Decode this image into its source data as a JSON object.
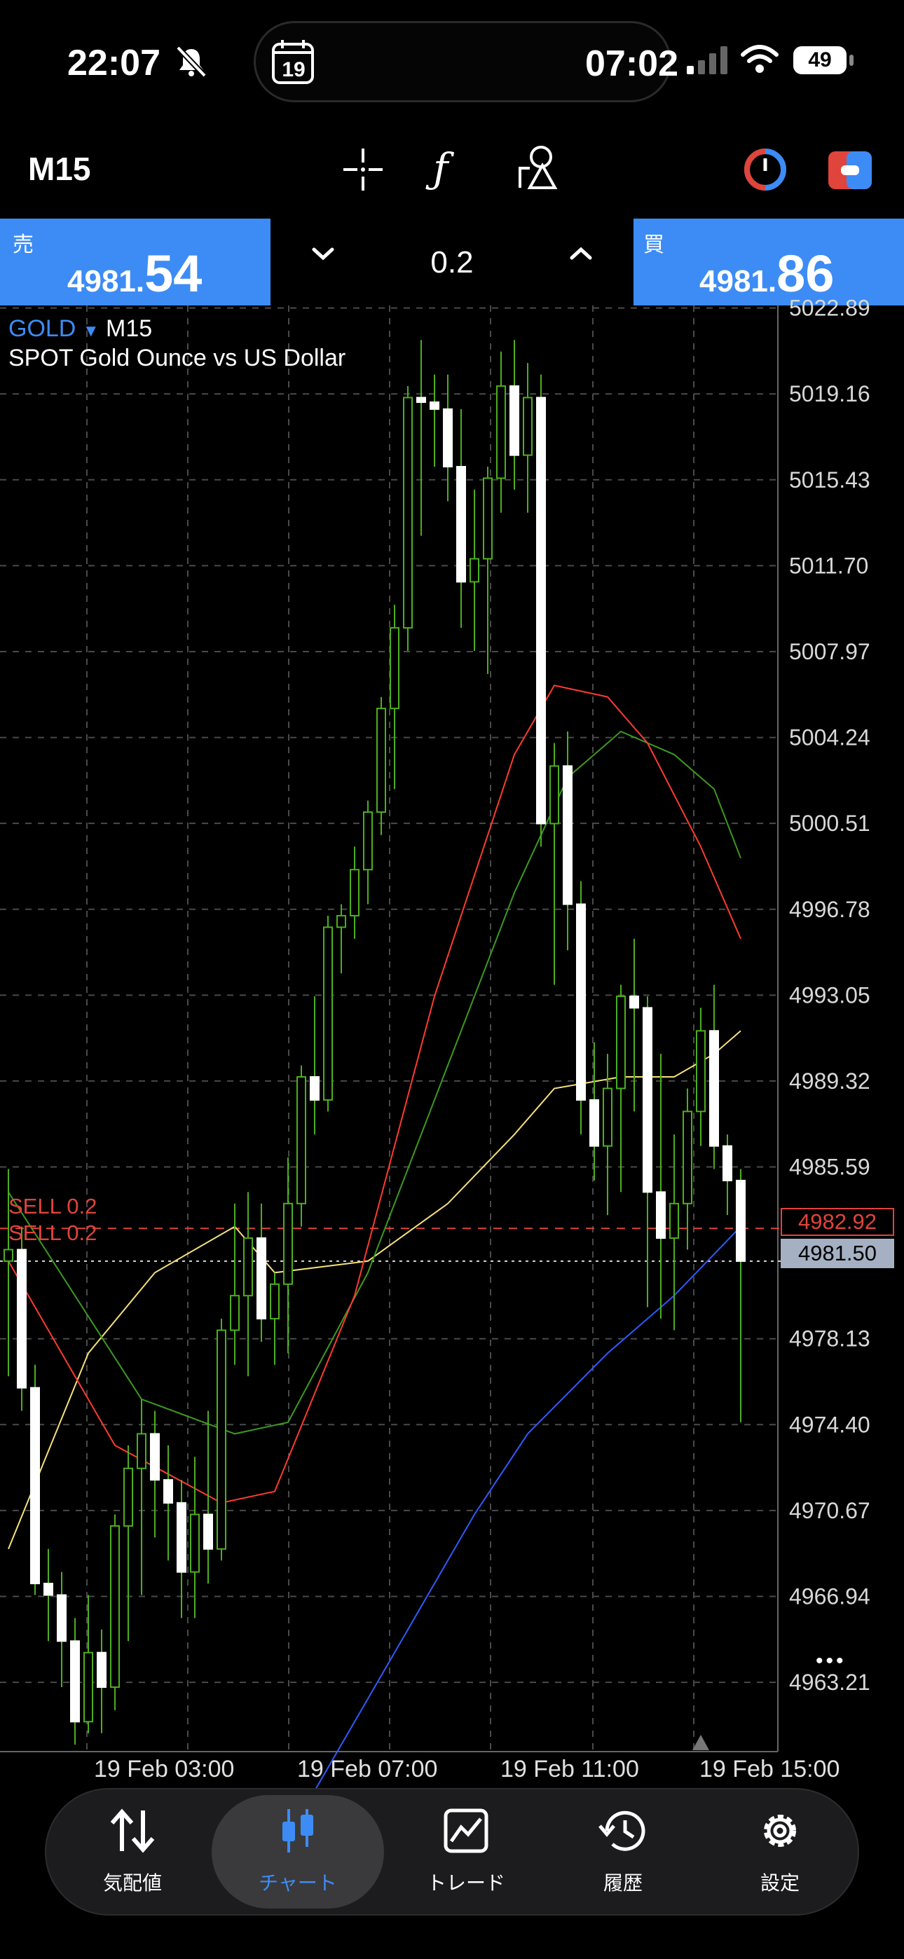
{
  "status_bar": {
    "time": "22:07",
    "island_time": "07:02",
    "calendar_day": "19",
    "battery": "49"
  },
  "toolbar": {
    "timeframe": "M15"
  },
  "trade_panel": {
    "sell_label": "売",
    "sell_price_small": "4981.",
    "sell_price_big": "54",
    "lot": "0.2",
    "buy_label": "買",
    "buy_price_small": "4981.",
    "buy_price_big": "86"
  },
  "chart_info": {
    "symbol": "GOLD",
    "timeframe": "M15",
    "description": "SPOT Gold Ounce vs US Dollar",
    "order1": "SELL 0.2",
    "order2": "SELL 0.2",
    "order_price": "4982.92",
    "current_price": "4981.50",
    "more": "•••"
  },
  "colors": {
    "accent": "#3d8cf5",
    "bull_candle": "#ffffff",
    "wick": "#4caf1f",
    "ma_red": "#ff3b30",
    "ma_green": "#3c9a1e",
    "ma_yellow": "#f7e17a",
    "ma_blue": "#2f5bff",
    "order_line": "#e0443b"
  },
  "chart_data": {
    "type": "candlestick",
    "symbol": "GOLD",
    "timeframe": "M15",
    "y_ticks": [
      "5022.89",
      "5019.16",
      "5015.43",
      "5011.70",
      "5007.97",
      "5004.24",
      "5000.51",
      "4996.78",
      "4993.05",
      "4989.32",
      "4985.59",
      "4978.13",
      "4974.40",
      "4970.67",
      "4966.94",
      "4963.21"
    ],
    "x_ticks": [
      "19 Feb 03:00",
      "19 Feb 07:00",
      "19 Feb 11:00",
      "19 Feb 15:00"
    ],
    "ylim": [
      4960.2,
      5023.0
    ],
    "candles": [
      {
        "o": 4981.5,
        "h": 4985.5,
        "l": 4976.5,
        "c": 4982.0
      },
      {
        "o": 4982.0,
        "h": 4983.0,
        "l": 4975.0,
        "c": 4976.0
      },
      {
        "o": 4976.0,
        "h": 4977.0,
        "l": 4967.0,
        "c": 4967.5
      },
      {
        "o": 4967.5,
        "h": 4969.0,
        "l": 4965.0,
        "c": 4967.0
      },
      {
        "o": 4967.0,
        "h": 4968.0,
        "l": 4963.0,
        "c": 4965.0
      },
      {
        "o": 4965.0,
        "h": 4966.0,
        "l": 4960.5,
        "c": 4961.5
      },
      {
        "o": 4961.5,
        "h": 4967.0,
        "l": 4961.0,
        "c": 4964.5
      },
      {
        "o": 4964.5,
        "h": 4965.5,
        "l": 4961.0,
        "c": 4963.0
      },
      {
        "o": 4963.0,
        "h": 4970.5,
        "l": 4962.0,
        "c": 4970.0
      },
      {
        "o": 4970.0,
        "h": 4973.5,
        "l": 4965.0,
        "c": 4972.5
      },
      {
        "o": 4972.5,
        "h": 4975.5,
        "l": 4967.0,
        "c": 4974.0
      },
      {
        "o": 4974.0,
        "h": 4975.0,
        "l": 4969.5,
        "c": 4972.0
      },
      {
        "o": 4972.0,
        "h": 4973.5,
        "l": 4968.5,
        "c": 4971.0
      },
      {
        "o": 4971.0,
        "h": 4972.0,
        "l": 4966.0,
        "c": 4968.0
      },
      {
        "o": 4968.0,
        "h": 4973.0,
        "l": 4966.0,
        "c": 4970.5
      },
      {
        "o": 4970.5,
        "h": 4975.0,
        "l": 4967.5,
        "c": 4969.0
      },
      {
        "o": 4969.0,
        "h": 4979.0,
        "l": 4968.5,
        "c": 4978.5
      },
      {
        "o": 4978.5,
        "h": 4984.0,
        "l": 4977.0,
        "c": 4980.0
      },
      {
        "o": 4980.0,
        "h": 4984.5,
        "l": 4976.5,
        "c": 4982.5
      },
      {
        "o": 4982.5,
        "h": 4984.0,
        "l": 4978.0,
        "c": 4979.0
      },
      {
        "o": 4979.0,
        "h": 4981.0,
        "l": 4977.0,
        "c": 4980.5
      },
      {
        "o": 4980.5,
        "h": 4986.0,
        "l": 4977.5,
        "c": 4984.0
      },
      {
        "o": 4984.0,
        "h": 4990.0,
        "l": 4983.0,
        "c": 4989.5
      },
      {
        "o": 4989.5,
        "h": 4993.0,
        "l": 4987.0,
        "c": 4988.5
      },
      {
        "o": 4988.5,
        "h": 4996.5,
        "l": 4988.0,
        "c": 4996.0
      },
      {
        "o": 4996.0,
        "h": 4997.0,
        "l": 4994.0,
        "c": 4996.5
      },
      {
        "o": 4996.5,
        "h": 4999.5,
        "l": 4995.5,
        "c": 4998.5
      },
      {
        "o": 4998.5,
        "h": 5001.5,
        "l": 4997.0,
        "c": 5001.0
      },
      {
        "o": 5001.0,
        "h": 5006.0,
        "l": 5000.0,
        "c": 5005.5
      },
      {
        "o": 5005.5,
        "h": 5010.0,
        "l": 5002.0,
        "c": 5009.0
      },
      {
        "o": 5009.0,
        "h": 5019.5,
        "l": 5008.0,
        "c": 5019.0
      },
      {
        "o": 5019.0,
        "h": 5021.5,
        "l": 5013.0,
        "c": 5018.8
      },
      {
        "o": 5018.8,
        "h": 5020.0,
        "l": 5016.0,
        "c": 5018.5
      },
      {
        "o": 5018.5,
        "h": 5020.0,
        "l": 5014.5,
        "c": 5016.0
      },
      {
        "o": 5016.0,
        "h": 5018.5,
        "l": 5009.0,
        "c": 5011.0
      },
      {
        "o": 5011.0,
        "h": 5015.0,
        "l": 5008.0,
        "c": 5012.0
      },
      {
        "o": 5012.0,
        "h": 5016.0,
        "l": 5007.0,
        "c": 5015.5
      },
      {
        "o": 5015.5,
        "h": 5021.0,
        "l": 5014.0,
        "c": 5019.5
      },
      {
        "o": 5019.5,
        "h": 5021.5,
        "l": 5015.0,
        "c": 5016.5
      },
      {
        "o": 5016.5,
        "h": 5020.5,
        "l": 5014.0,
        "c": 5019.0
      },
      {
        "o": 5019.0,
        "h": 5020.0,
        "l": 4999.5,
        "c": 5000.5
      },
      {
        "o": 5000.5,
        "h": 5004.0,
        "l": 4993.5,
        "c": 5003.0
      },
      {
        "o": 5003.0,
        "h": 5004.5,
        "l": 4995.0,
        "c": 4997.0
      },
      {
        "o": 4997.0,
        "h": 4998.0,
        "l": 4987.0,
        "c": 4988.5
      },
      {
        "o": 4988.5,
        "h": 4991.0,
        "l": 4985.0,
        "c": 4986.5
      },
      {
        "o": 4986.5,
        "h": 4990.5,
        "l": 4983.5,
        "c": 4989.0
      },
      {
        "o": 4989.0,
        "h": 4993.5,
        "l": 4984.5,
        "c": 4993.0
      },
      {
        "o": 4993.0,
        "h": 4995.5,
        "l": 4988.0,
        "c": 4992.5
      },
      {
        "o": 4992.5,
        "h": 4993.0,
        "l": 4979.5,
        "c": 4984.5
      },
      {
        "o": 4984.5,
        "h": 4990.5,
        "l": 4979.0,
        "c": 4982.5
      },
      {
        "o": 4982.5,
        "h": 4987.0,
        "l": 4978.5,
        "c": 4984.0
      },
      {
        "o": 4984.0,
        "h": 4989.0,
        "l": 4982.0,
        "c": 4988.0
      },
      {
        "o": 4988.0,
        "h": 4992.5,
        "l": 4986.5,
        "c": 4991.5
      },
      {
        "o": 4991.5,
        "h": 4993.5,
        "l": 4985.5,
        "c": 4986.5
      },
      {
        "o": 4986.5,
        "h": 4987.0,
        "l": 4983.5,
        "c": 4985.0
      },
      {
        "o": 4985.0,
        "h": 4985.5,
        "l": 4974.5,
        "c": 4981.5
      }
    ],
    "ma_red": [
      [
        0,
        4981.5
      ],
      [
        8,
        4973.5
      ],
      [
        16,
        4971.0
      ],
      [
        20,
        4971.5
      ],
      [
        26,
        4980.0
      ],
      [
        32,
        4993.0
      ],
      [
        38,
        5003.5
      ],
      [
        41,
        5006.5
      ],
      [
        45,
        5006.0
      ],
      [
        48,
        5004.0
      ],
      [
        52,
        4999.5
      ],
      [
        55,
        4995.5
      ]
    ],
    "ma_green": [
      [
        0,
        4984.5
      ],
      [
        10,
        4975.5
      ],
      [
        17,
        4974.0
      ],
      [
        21,
        4974.5
      ],
      [
        27,
        4981.0
      ],
      [
        33,
        4990.0
      ],
      [
        38,
        4997.5
      ],
      [
        42,
        5002.5
      ],
      [
        46,
        5004.5
      ],
      [
        50,
        5003.5
      ],
      [
        53,
        5002.0
      ],
      [
        55,
        4999.0
      ]
    ],
    "ma_yellow": [
      [
        0,
        4969.0
      ],
      [
        6,
        4977.5
      ],
      [
        11,
        4981.0
      ],
      [
        17,
        4983.0
      ],
      [
        20,
        4981.0
      ],
      [
        27,
        4981.5
      ],
      [
        33,
        4984.0
      ],
      [
        38,
        4987.0
      ],
      [
        41,
        4989.0
      ],
      [
        46,
        4989.5
      ],
      [
        50,
        4989.5
      ],
      [
        53,
        4990.5
      ],
      [
        55,
        4991.5
      ]
    ],
    "ma_blue": [
      [
        23,
        4958.5
      ],
      [
        29,
        4964.5
      ],
      [
        35,
        4970.5
      ],
      [
        39,
        4974.0
      ],
      [
        45,
        4977.5
      ],
      [
        50,
        4980.0
      ],
      [
        55,
        4983.0
      ]
    ],
    "order_price": 4982.92,
    "current_price": 4981.5
  },
  "nav": {
    "items": [
      {
        "label": "気配値",
        "icon": "quotes-icon"
      },
      {
        "label": "チャート",
        "icon": "chart-icon"
      },
      {
        "label": "トレード",
        "icon": "trade-icon"
      },
      {
        "label": "履歴",
        "icon": "history-icon"
      },
      {
        "label": "設定",
        "icon": "settings-icon"
      }
    ]
  }
}
